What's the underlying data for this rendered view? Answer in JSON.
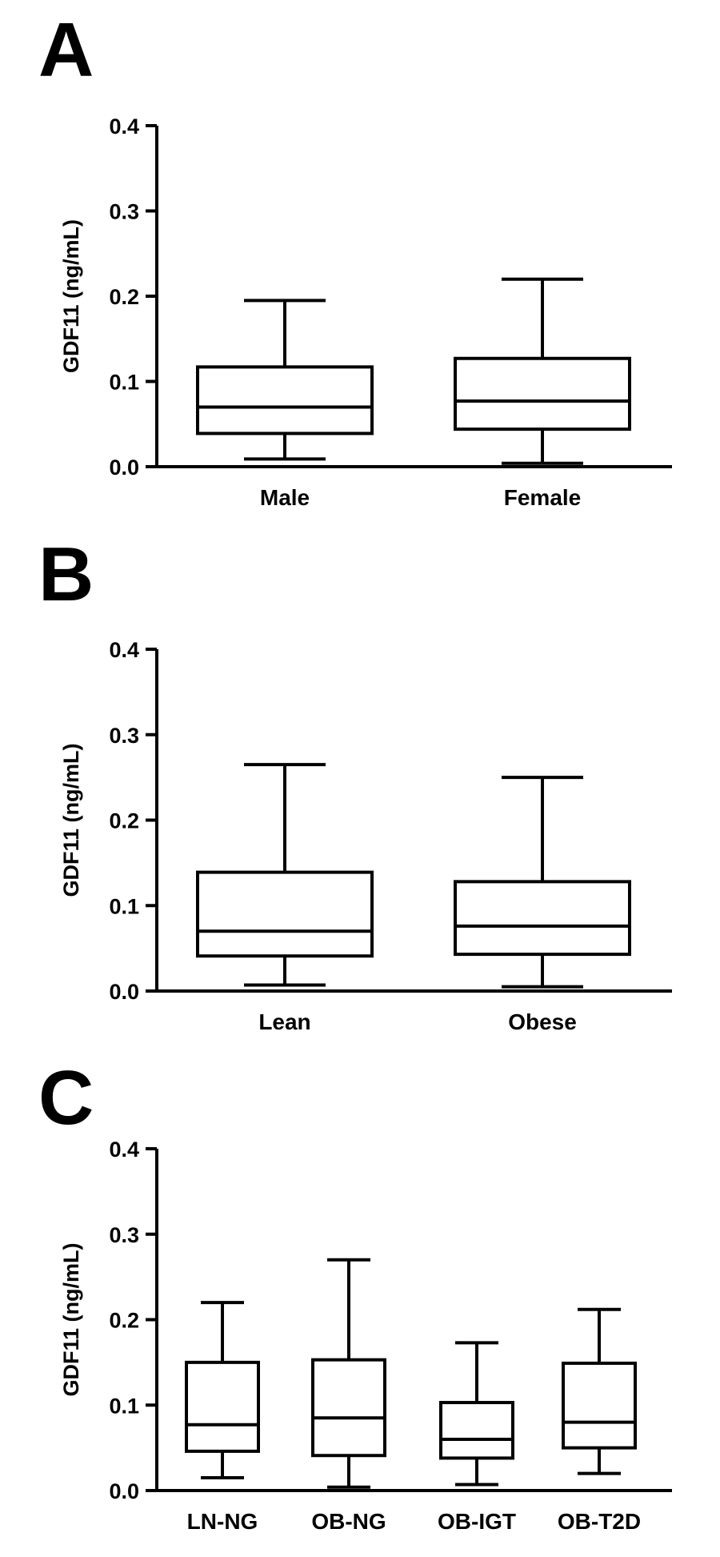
{
  "chart_data": [
    {
      "type": "box",
      "panel": "A",
      "ylabel": "GDF11 (ng/mL)",
      "ylim": [
        0.0,
        0.4
      ],
      "yticks": [
        "0.0",
        "0.1",
        "0.2",
        "0.3",
        "0.4"
      ],
      "categories": [
        "Male",
        "Female"
      ],
      "boxes": [
        {
          "min": 0.009,
          "q1": 0.039,
          "median": 0.07,
          "q3": 0.117,
          "max": 0.195
        },
        {
          "min": 0.004,
          "q1": 0.044,
          "median": 0.077,
          "q3": 0.127,
          "max": 0.22
        }
      ]
    },
    {
      "type": "box",
      "panel": "B",
      "ylabel": "GDF11 (ng/mL)",
      "ylim": [
        0.0,
        0.4
      ],
      "yticks": [
        "0.0",
        "0.1",
        "0.2",
        "0.3",
        "0.4"
      ],
      "categories": [
        "Lean",
        "Obese"
      ],
      "boxes": [
        {
          "min": 0.007,
          "q1": 0.041,
          "median": 0.07,
          "q3": 0.139,
          "max": 0.265
        },
        {
          "min": 0.005,
          "q1": 0.043,
          "median": 0.076,
          "q3": 0.128,
          "max": 0.25
        }
      ]
    },
    {
      "type": "box",
      "panel": "C",
      "ylabel": "GDF11 (ng/mL)",
      "ylim": [
        0.0,
        0.4
      ],
      "yticks": [
        "0.0",
        "0.1",
        "0.2",
        "0.3",
        "0.4"
      ],
      "categories": [
        "LN-NG",
        "OB-NG",
        "OB-IGT",
        "OB-T2D"
      ],
      "boxes": [
        {
          "min": 0.015,
          "q1": 0.046,
          "median": 0.077,
          "q3": 0.15,
          "max": 0.22
        },
        {
          "min": 0.004,
          "q1": 0.041,
          "median": 0.085,
          "q3": 0.153,
          "max": 0.27
        },
        {
          "min": 0.007,
          "q1": 0.038,
          "median": 0.06,
          "q3": 0.103,
          "max": 0.173
        },
        {
          "min": 0.02,
          "q1": 0.05,
          "median": 0.08,
          "q3": 0.149,
          "max": 0.212
        }
      ]
    }
  ]
}
